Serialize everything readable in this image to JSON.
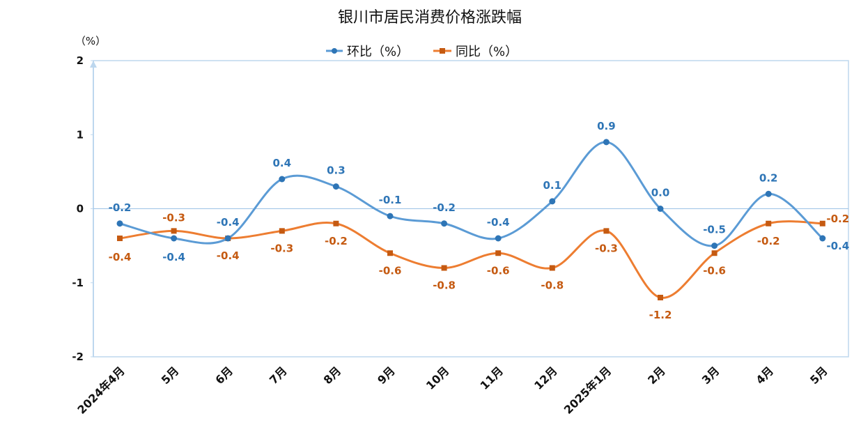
{
  "chart_data": {
    "type": "line",
    "title": "银川市居民消费价格涨跌幅",
    "unit_label": "（%）",
    "categories": [
      "2024年4月",
      "5月",
      "6月",
      "7月",
      "8月",
      "9月",
      "10月",
      "11月",
      "12月",
      "2025年1月",
      "2月",
      "3月",
      "4月",
      "5月"
    ],
    "ylim": [
      -2,
      2
    ],
    "yticks": [
      2,
      1,
      0,
      -1,
      -2
    ],
    "legend_position": "top",
    "series": [
      {
        "name": "环比（%）",
        "color": "#5B9BD5",
        "label_color": "#2E75B6",
        "marker": "circle",
        "values": [
          -0.2,
          -0.4,
          -0.4,
          0.4,
          0.3,
          -0.1,
          -0.2,
          -0.4,
          0.1,
          0.9,
          0.0,
          -0.5,
          0.2,
          -0.4
        ],
        "labels": [
          "-0.2",
          "-0.4",
          "-0.4",
          "0.4",
          "0.3",
          "-0.1",
          "-0.2",
          "-0.4",
          "0.1",
          "0.9",
          "0.0",
          "-0.5",
          "0.2",
          "-0.4"
        ]
      },
      {
        "name": "同比（%）",
        "color": "#ED7D31",
        "label_color": "#C55A11",
        "marker": "square",
        "values": [
          -0.4,
          -0.3,
          -0.4,
          -0.3,
          -0.2,
          -0.6,
          -0.8,
          -0.6,
          -0.8,
          -0.3,
          -1.2,
          -0.6,
          -0.2,
          -0.2
        ],
        "labels": [
          "-0.4",
          "-0.3",
          "-0.4",
          "-0.3",
          "-0.2",
          "-0.6",
          "-0.8",
          "-0.6",
          "-0.8",
          "-0.3",
          "-1.2",
          "-0.6",
          "-0.2",
          "-0.2"
        ]
      }
    ]
  }
}
